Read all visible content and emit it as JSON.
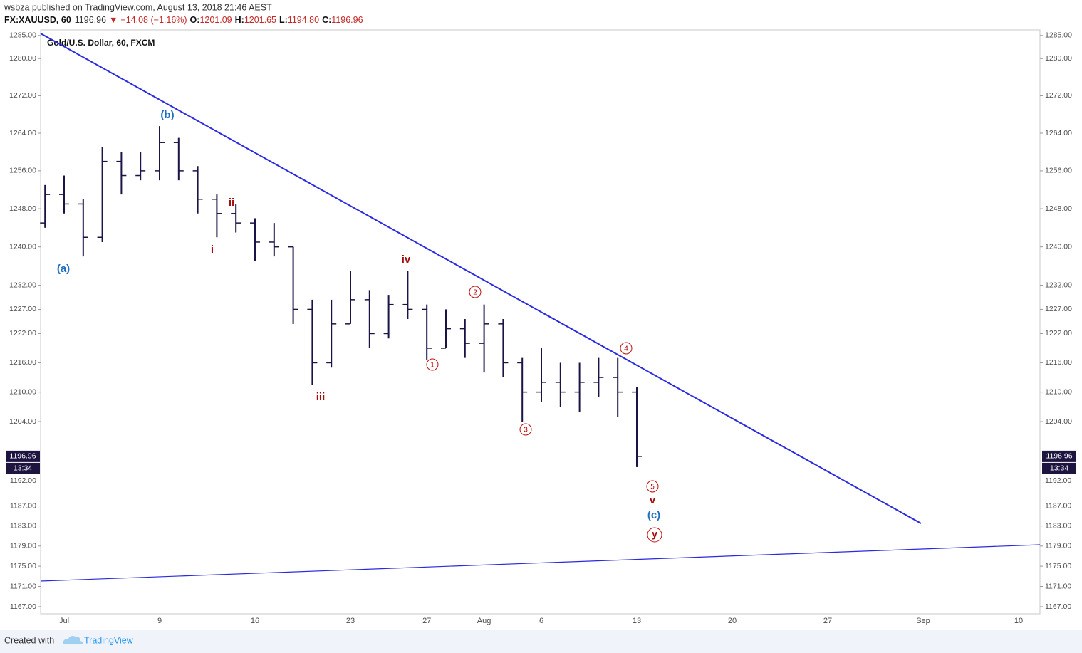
{
  "header": {
    "byline": "wsbza published on TradingView.com, August 13, 2018 21:46 AEST",
    "symbol": "FX:XAUUSD, 60",
    "price": "1196.96",
    "arrow": "▼",
    "change": "−14.08 (−1.16%)",
    "open_label": "O:",
    "open": "1201.09",
    "high_label": "H:",
    "high": "1201.65",
    "low_label": "L:",
    "low": "1194.80",
    "close_label": "C:",
    "close": "1196.96"
  },
  "footer": {
    "created": "Created with",
    "brand": "TradingView"
  },
  "chart_data": {
    "type": "ohlc",
    "legend": "Gold/U.S. Dollar, 60, FXCM",
    "categories": [
      null,
      "Jul",
      null,
      null,
      null,
      null,
      "9",
      null,
      null,
      null,
      null,
      "16",
      null,
      null,
      null,
      null,
      "23",
      null,
      null,
      null,
      "27",
      null,
      null,
      "Aug",
      null,
      null,
      "6",
      null,
      null,
      null,
      null,
      "13",
      null,
      null,
      null,
      null,
      "20",
      null,
      null,
      null,
      null,
      "27",
      null,
      null,
      null,
      null,
      "Sep",
      null,
      null,
      null,
      null,
      "10"
    ],
    "open": [
      1245,
      1251,
      1249,
      1242,
      1258,
      1255,
      1256,
      1262,
      1256,
      1250,
      1247,
      1245,
      1241,
      1240,
      1227,
      1216,
      1224,
      1229,
      1222,
      1228,
      1227,
      1219,
      1223,
      1220,
      1224,
      1216,
      1210,
      1212,
      1210,
      1212,
      1213,
      1210,
      null,
      null,
      null,
      null,
      null,
      null,
      null,
      null,
      null,
      null,
      null,
      null,
      null,
      null,
      null,
      null,
      null,
      null,
      null,
      null
    ],
    "high": [
      1253,
      1255,
      1250,
      1261,
      1260,
      1260,
      1265.5,
      1263,
      1257,
      1251,
      1249,
      1246,
      1245,
      1240,
      1229,
      1229,
      1235,
      1231,
      1230,
      1235,
      1228,
      1227,
      1225,
      1228,
      1225,
      1217,
      1219,
      1216,
      1216,
      1217,
      1217,
      1211,
      null,
      null,
      null,
      null,
      null,
      null,
      null,
      null,
      null,
      null,
      null,
      null,
      null,
      null,
      null,
      null,
      null,
      null,
      null,
      null
    ],
    "low": [
      1244,
      1247,
      1238,
      1241,
      1251,
      1254,
      1254,
      1254,
      1247,
      1242,
      1243,
      1237,
      1238,
      1224,
      1211.5,
      1215,
      1224,
      1219,
      1221,
      1225,
      1216.5,
      1219,
      1217,
      1214,
      1213,
      1204,
      1208,
      1207,
      1206,
      1209,
      1205,
      1194.8,
      null,
      null,
      null,
      null,
      null,
      null,
      null,
      null,
      null,
      null,
      null,
      null,
      null,
      null,
      null,
      null,
      null,
      null,
      null,
      null
    ],
    "close": [
      1251,
      1249,
      1242,
      1258,
      1255,
      1256,
      1262,
      1256,
      1250,
      1247,
      1245,
      1241,
      1240,
      1227,
      1216,
      1224,
      1229,
      1222,
      1228,
      1227,
      1219,
      1223,
      1220,
      1224,
      1216,
      1210,
      1212,
      1210,
      1212,
      1213,
      1210,
      1196.96,
      null,
      null,
      null,
      null,
      null,
      null,
      null,
      null,
      null,
      null,
      null,
      null,
      null,
      null,
      null,
      null,
      null,
      null,
      null,
      null
    ],
    "color": "#1a1446",
    "ylim": [
      1165.6,
      1286.2
    ],
    "log_scale": true,
    "yticks": [
      {
        "value": 1285,
        "label": "1285.00"
      },
      {
        "value": 1280,
        "label": "1280.00"
      },
      {
        "value": 1272,
        "label": "1272.00"
      },
      {
        "value": 1264,
        "label": "1264.00"
      },
      {
        "value": 1256,
        "label": "1256.00"
      },
      {
        "value": 1248,
        "label": "1248.00"
      },
      {
        "value": 1240,
        "label": "1240.00"
      },
      {
        "value": 1232,
        "label": "1232.00"
      },
      {
        "value": 1227,
        "label": "1227.00"
      },
      {
        "value": 1222,
        "label": "1222.00"
      },
      {
        "value": 1216,
        "label": "1216.00"
      },
      {
        "value": 1210,
        "label": "1210.00"
      },
      {
        "value": 1204,
        "label": "1204.00"
      },
      {
        "value": 1192,
        "label": "1192.00"
      },
      {
        "value": 1187,
        "label": "1187.00"
      },
      {
        "value": 1183,
        "label": "1183.00"
      },
      {
        "value": 1179,
        "label": "1179.00"
      },
      {
        "value": 1175,
        "label": "1175.00"
      },
      {
        "value": 1171,
        "label": "1171.00"
      },
      {
        "value": 1167,
        "label": "1167.00"
      }
    ],
    "last_price": 1196.96,
    "countdown": "13:34",
    "annotations": [
      "(b)",
      "(a)",
      "i",
      "ii",
      "iii",
      "iv",
      "1",
      "2",
      "3",
      "4",
      "5",
      "v",
      "(c)",
      "y"
    ]
  }
}
